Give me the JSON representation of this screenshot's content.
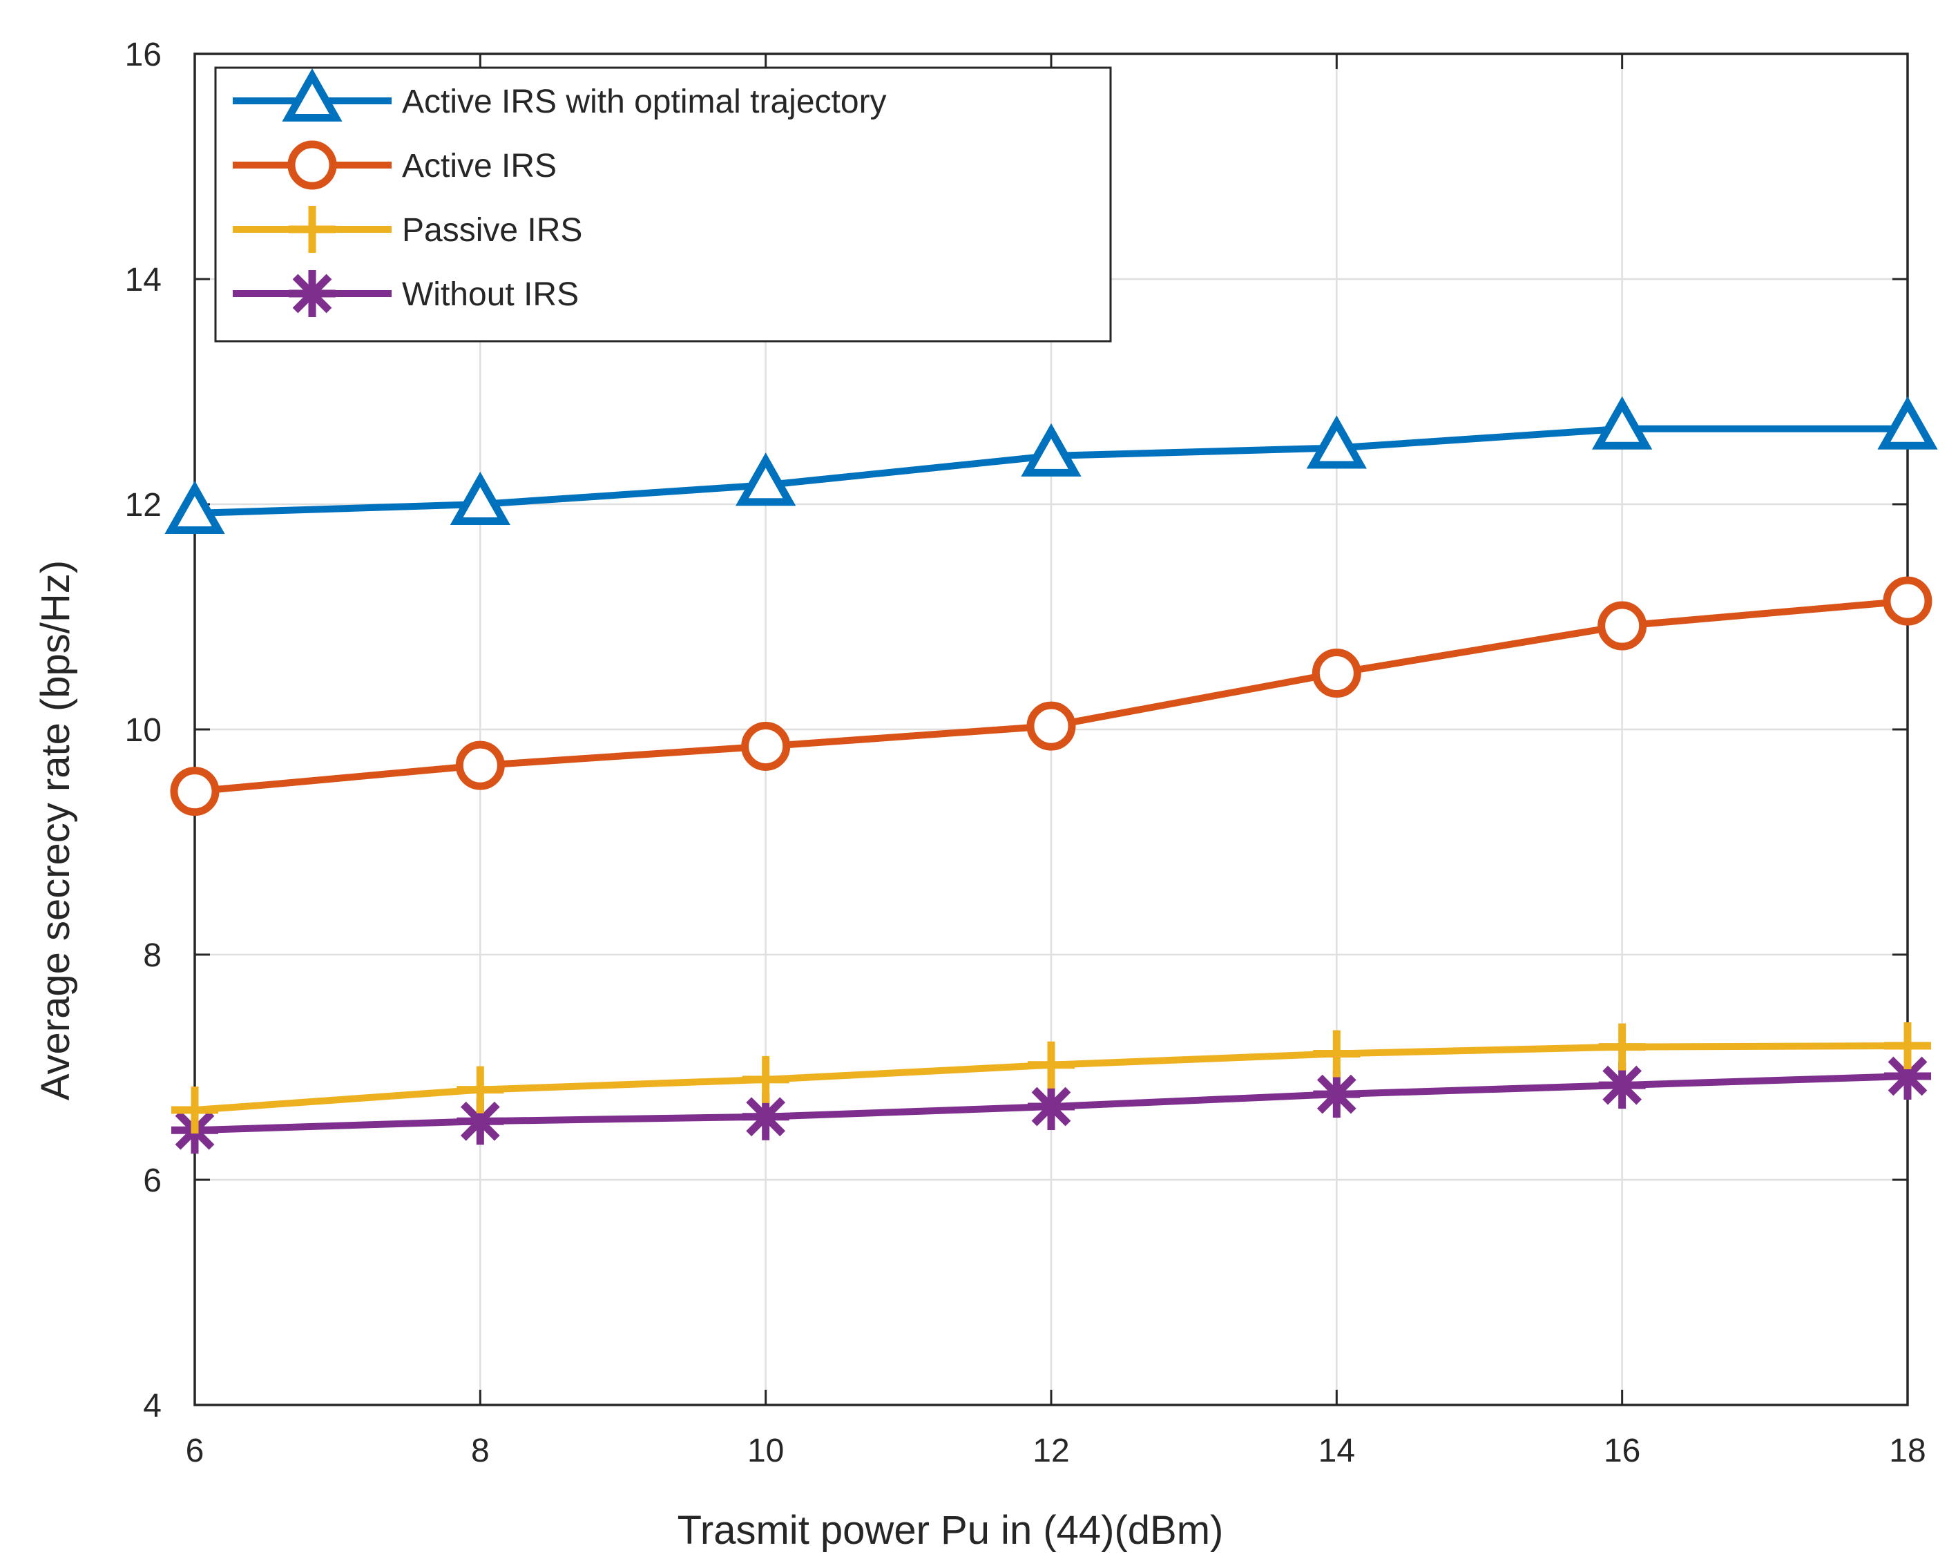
{
  "chart_data": {
    "type": "line",
    "title": "",
    "xlabel": "Trasmit power Pu in (44)(dBm)",
    "ylabel": "Average secrecy rate (bps/Hz)",
    "xlim": [
      6,
      18
    ],
    "ylim": [
      4,
      16
    ],
    "xticks": [
      6,
      8,
      10,
      12,
      14,
      16,
      18
    ],
    "yticks": [
      4,
      6,
      8,
      10,
      12,
      14,
      16
    ],
    "grid": true,
    "legend_position": "top-left",
    "x": [
      6,
      8,
      10,
      12,
      14,
      16,
      18
    ],
    "series": [
      {
        "name": "Active IRS with optimal trajectory",
        "color": "#0072BD",
        "marker": "triangle",
        "values": [
          11.92,
          12.0,
          12.17,
          12.43,
          12.5,
          12.67,
          12.67
        ]
      },
      {
        "name": "Active IRS",
        "color": "#D95319",
        "marker": "circle",
        "values": [
          9.45,
          9.68,
          9.85,
          10.03,
          10.5,
          10.92,
          11.14
        ]
      },
      {
        "name": "Passive IRS",
        "color": "#EDB120",
        "marker": "plus",
        "values": [
          6.62,
          6.8,
          6.89,
          7.02,
          7.12,
          7.18,
          7.19
        ]
      },
      {
        "name": "Without IRS",
        "color": "#7E2F8E",
        "marker": "asterisk",
        "values": [
          6.44,
          6.52,
          6.56,
          6.65,
          6.76,
          6.84,
          6.92
        ]
      }
    ]
  }
}
